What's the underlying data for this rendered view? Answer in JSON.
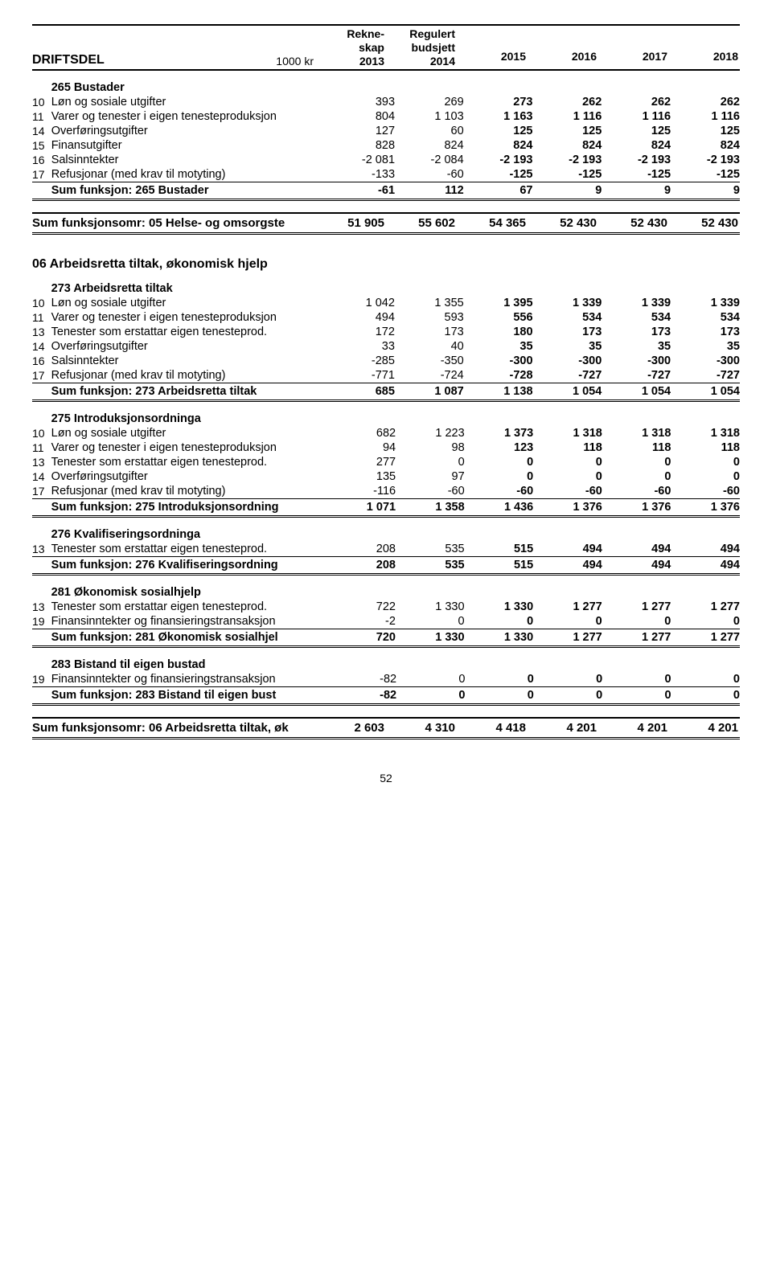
{
  "header": {
    "title": "DRIFTSDEL",
    "unit": "1000 kr",
    "col1_lines": [
      "Rekne-",
      "skap",
      "2013"
    ],
    "col2_lines": [
      "Regulert",
      "budsjett",
      "2014"
    ],
    "years": [
      "2015",
      "2016",
      "2017",
      "2018"
    ]
  },
  "sections": [
    {
      "title": "265 Bustader",
      "rows": [
        {
          "code": "10",
          "label": "Løn og sosiale utgifter",
          "v": [
            "393",
            "269",
            "273",
            "262",
            "262",
            "262"
          ],
          "bold3": true
        },
        {
          "code": "11",
          "label": "Varer og tenester i eigen tenesteproduksjon",
          "v": [
            "804",
            "1 103",
            "1 163",
            "1 116",
            "1 116",
            "1 116"
          ],
          "bold3": true
        },
        {
          "code": "14",
          "label": "Overføringsutgifter",
          "v": [
            "127",
            "60",
            "125",
            "125",
            "125",
            "125"
          ],
          "bold3": true
        },
        {
          "code": "15",
          "label": "Finansutgifter",
          "v": [
            "828",
            "824",
            "824",
            "824",
            "824",
            "824"
          ],
          "bold3": true
        },
        {
          "code": "16",
          "label": "Salsinntekter",
          "v": [
            "-2 081",
            "-2 084",
            "-2 193",
            "-2 193",
            "-2 193",
            "-2 193"
          ],
          "bold3": true
        },
        {
          "code": "17",
          "label": "Refusjonar (med krav til motyting)",
          "v": [
            "-133",
            "-60",
            "-125",
            "-125",
            "-125",
            "-125"
          ],
          "bold3": true
        }
      ],
      "sum": {
        "label": "Sum funksjon: 265 Bustader",
        "v": [
          "-61",
          "112",
          "67",
          "9",
          "9",
          "9"
        ]
      }
    }
  ],
  "grand1": {
    "label": "Sum funksjonsomr: 05 Helse- og omsorgste",
    "v": [
      "51 905",
      "55 602",
      "54 365",
      "52 430",
      "52 430",
      "52 430"
    ]
  },
  "area6_title": "06 Arbeidsretta tiltak, økonomisk hjelp",
  "area6": [
    {
      "title": "273 Arbeidsretta tiltak",
      "rows": [
        {
          "code": "10",
          "label": "Løn og sosiale utgifter",
          "v": [
            "1 042",
            "1 355",
            "1 395",
            "1 339",
            "1 339",
            "1 339"
          ],
          "bold3": true
        },
        {
          "code": "11",
          "label": "Varer og tenester i eigen tenesteproduksjon",
          "v": [
            "494",
            "593",
            "556",
            "534",
            "534",
            "534"
          ],
          "bold3": true
        },
        {
          "code": "13",
          "label": "Tenester som erstattar eigen tenesteprod.",
          "v": [
            "172",
            "173",
            "180",
            "173",
            "173",
            "173"
          ],
          "bold3": true
        },
        {
          "code": "14",
          "label": "Overføringsutgifter",
          "v": [
            "33",
            "40",
            "35",
            "35",
            "35",
            "35"
          ],
          "bold3": true
        },
        {
          "code": "16",
          "label": "Salsinntekter",
          "v": [
            "-285",
            "-350",
            "-300",
            "-300",
            "-300",
            "-300"
          ],
          "bold3": true
        },
        {
          "code": "17",
          "label": "Refusjonar (med krav til motyting)",
          "v": [
            "-771",
            "-724",
            "-728",
            "-727",
            "-727",
            "-727"
          ],
          "bold3": true
        }
      ],
      "sum": {
        "label": "Sum funksjon: 273 Arbeidsretta tiltak",
        "v": [
          "685",
          "1 087",
          "1 138",
          "1 054",
          "1 054",
          "1 054"
        ]
      }
    },
    {
      "title": "275 Introduksjonsordninga",
      "rows": [
        {
          "code": "10",
          "label": "Løn og sosiale utgifter",
          "v": [
            "682",
            "1 223",
            "1 373",
            "1 318",
            "1 318",
            "1 318"
          ],
          "bold3": true
        },
        {
          "code": "11",
          "label": "Varer og tenester i eigen tenesteproduksjon",
          "v": [
            "94",
            "98",
            "123",
            "118",
            "118",
            "118"
          ],
          "bold3": true
        },
        {
          "code": "13",
          "label": "Tenester som erstattar eigen tenesteprod.",
          "v": [
            "277",
            "0",
            "0",
            "0",
            "0",
            "0"
          ],
          "bold3": true
        },
        {
          "code": "14",
          "label": "Overføringsutgifter",
          "v": [
            "135",
            "97",
            "0",
            "0",
            "0",
            "0"
          ],
          "bold3": true
        },
        {
          "code": "17",
          "label": "Refusjonar (med krav til motyting)",
          "v": [
            "-116",
            "-60",
            "-60",
            "-60",
            "-60",
            "-60"
          ],
          "bold3": true
        }
      ],
      "sum": {
        "label": "Sum funksjon: 275 Introduksjonsordning",
        "v": [
          "1 071",
          "1 358",
          "1 436",
          "1 376",
          "1 376",
          "1 376"
        ]
      }
    },
    {
      "title": "276 Kvalifiseringsordninga",
      "rows": [
        {
          "code": "13",
          "label": "Tenester som erstattar eigen tenesteprod.",
          "v": [
            "208",
            "535",
            "515",
            "494",
            "494",
            "494"
          ],
          "bold3": true
        }
      ],
      "sum": {
        "label": "Sum funksjon: 276 Kvalifiseringsordning",
        "v": [
          "208",
          "535",
          "515",
          "494",
          "494",
          "494"
        ]
      }
    },
    {
      "title": "281 Økonomisk sosialhjelp",
      "rows": [
        {
          "code": "13",
          "label": "Tenester som erstattar eigen tenesteprod.",
          "v": [
            "722",
            "1 330",
            "1 330",
            "1 277",
            "1 277",
            "1 277"
          ],
          "bold3": true
        },
        {
          "code": "19",
          "label": "Finansinntekter og finansieringstransaksjon",
          "v": [
            "-2",
            "0",
            "0",
            "0",
            "0",
            "0"
          ],
          "bold3": true
        }
      ],
      "sum": {
        "label": "Sum funksjon: 281 Økonomisk sosialhjel",
        "v": [
          "720",
          "1 330",
          "1 330",
          "1 277",
          "1 277",
          "1 277"
        ]
      }
    },
    {
      "title": "283 Bistand til eigen bustad",
      "rows": [
        {
          "code": "19",
          "label": "Finansinntekter og finansieringstransaksjon",
          "v": [
            "-82",
            "0",
            "0",
            "0",
            "0",
            "0"
          ],
          "bold3": true
        }
      ],
      "sum": {
        "label": "Sum funksjon: 283 Bistand til eigen bust",
        "v": [
          "-82",
          "0",
          "0",
          "0",
          "0",
          "0"
        ]
      }
    }
  ],
  "grand2": {
    "label": "Sum funksjonsomr: 06 Arbeidsretta tiltak, øk",
    "v": [
      "2 603",
      "4 310",
      "4 418",
      "4 201",
      "4 201",
      "4 201"
    ]
  },
  "page": "52"
}
